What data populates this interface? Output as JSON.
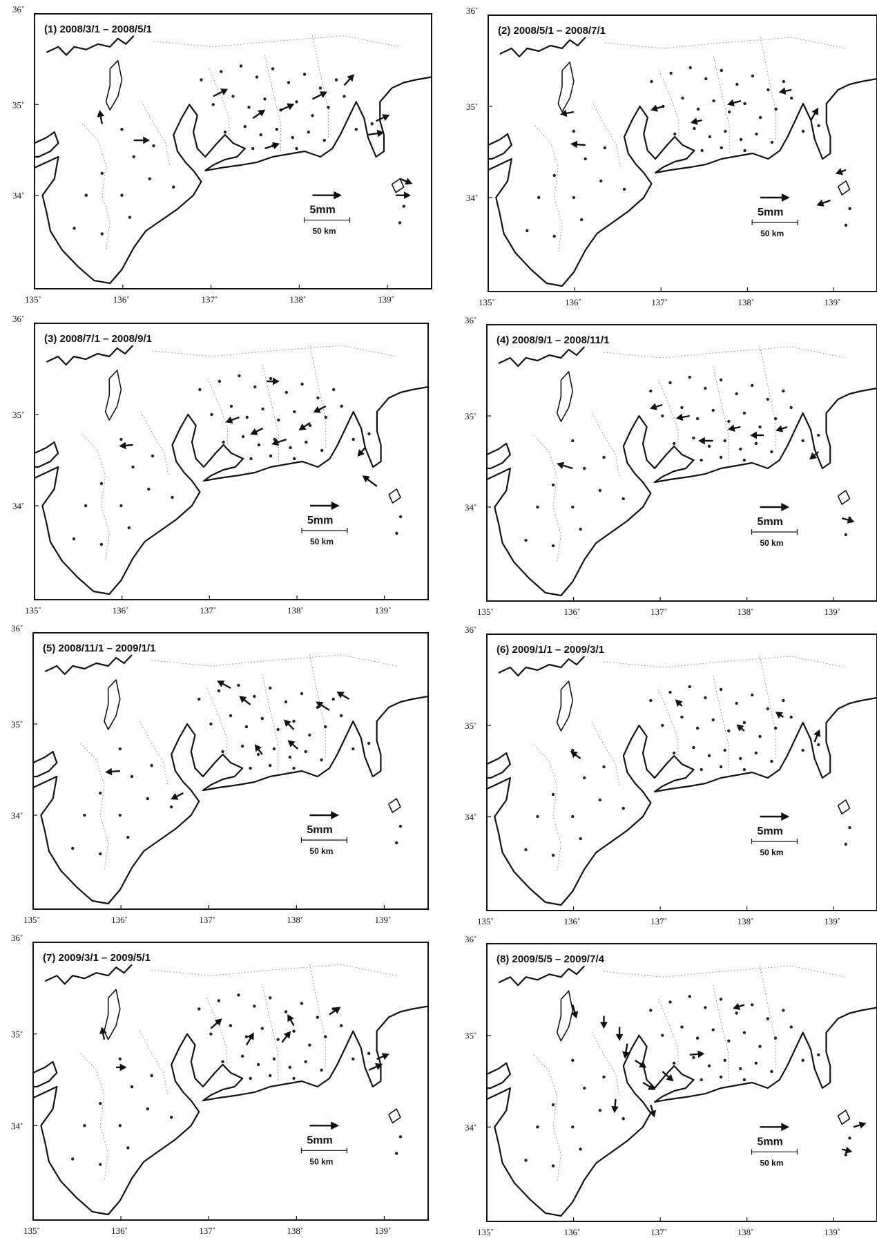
{
  "figure": {
    "panels": [
      {
        "id": 1,
        "title": "(1) 2008/3/1 – 2008/5/1"
      },
      {
        "id": 2,
        "title": "(2) 2008/5/1 – 2008/7/1"
      },
      {
        "id": 3,
        "title": "(3) 2008/7/1 – 2008/9/1"
      },
      {
        "id": 4,
        "title": "(4) 2008/9/1 – 2008/11/1"
      },
      {
        "id": 5,
        "title": "(5) 2008/11/1 – 2009/1/1"
      },
      {
        "id": 6,
        "title": "(6) 2009/1/1 – 2009/3/1"
      },
      {
        "id": 7,
        "title": "(7) 2009/3/1 – 2009/5/1"
      },
      {
        "id": 8,
        "title": "(8) 2009/5/5 – 2009/7/4"
      }
    ],
    "lon_ticks": [
      "135˚",
      "136˚",
      "137˚",
      "138˚",
      "139˚"
    ],
    "lat_ticks": [
      "36˚",
      "35˚",
      "34˚"
    ],
    "scale_arrow_label": "5mm",
    "scale_bar_label": "50 km"
  }
}
